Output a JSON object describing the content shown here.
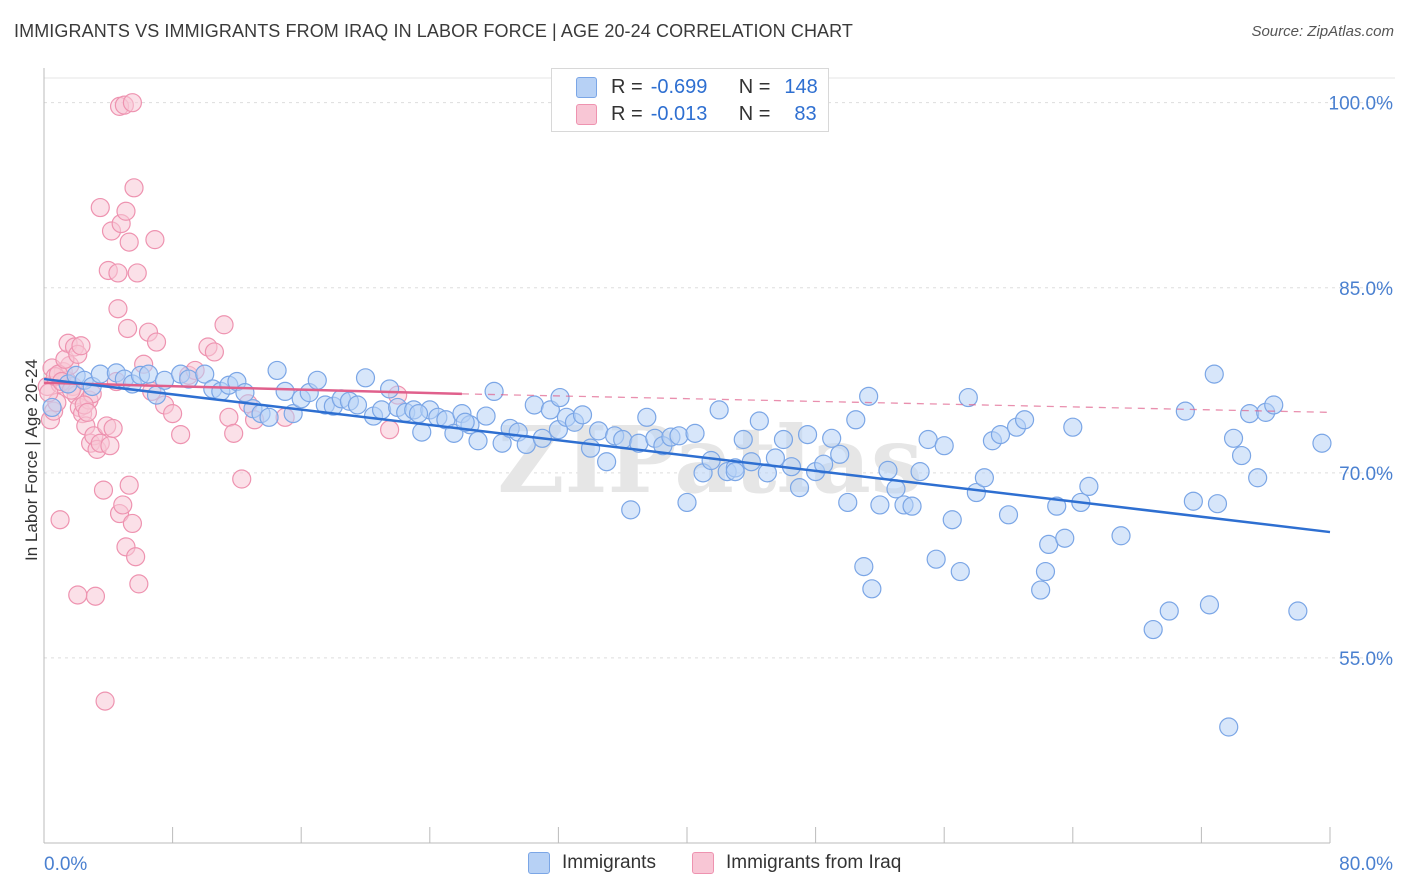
{
  "title": "IMMIGRANTS VS IMMIGRANTS FROM IRAQ IN LABOR FORCE | AGE 20-24 CORRELATION CHART",
  "source": "Source: ZipAtlas.com",
  "watermark": "ZIPatlas",
  "legend": {
    "r_label": "R =",
    "n_label": "N =",
    "series": [
      {
        "r": "-0.699",
        "n": "148"
      },
      {
        "r": "-0.013",
        "n": "83"
      }
    ]
  },
  "bottom_legend": [
    "Immigrants",
    "Immigrants from Iraq"
  ],
  "colors": {
    "blue_fill": "#b7d1f5",
    "blue_stroke": "#7ba6e6",
    "blue_line": "#2e6fd1",
    "pink_fill": "#f8c6d5",
    "pink_stroke": "#ee93b0",
    "pink_line": "#e0608c",
    "grid": "#dddddd",
    "axis_text": "#4a80d0"
  },
  "chart_data": {
    "type": "scatter",
    "title": "IMMIGRANTS VS IMMIGRANTS FROM IRAQ IN LABOR FORCE | AGE 20-24 CORRELATION CHART",
    "xlabel": "",
    "ylabel": "In Labor Force | Age 20-24",
    "xlim": [
      0,
      80
    ],
    "ylim": [
      40,
      102
    ],
    "x_tick_labels": [
      "0.0%",
      "80.0%"
    ],
    "y_tick_labels": [
      "100.0%",
      "85.0%",
      "70.0%",
      "55.0%"
    ],
    "y_ticks": [
      100,
      85,
      70,
      55
    ],
    "grid": true,
    "series": [
      {
        "name": "Immigrants",
        "r": -0.699,
        "n": 148,
        "trend": {
          "x": [
            0,
            80
          ],
          "y": [
            77.6,
            65.2
          ]
        },
        "points": [
          [
            0.5,
            75.3
          ],
          [
            1.5,
            77.2
          ],
          [
            2,
            77.9
          ],
          [
            2.5,
            77.5
          ],
          [
            3,
            77.0
          ],
          [
            3.5,
            78.0
          ],
          [
            4.5,
            78.1
          ],
          [
            5,
            77.6
          ],
          [
            5.5,
            77.2
          ],
          [
            6,
            77.9
          ],
          [
            6.5,
            78.0
          ],
          [
            7,
            76.3
          ],
          [
            7.5,
            77.5
          ],
          [
            8.5,
            78.0
          ],
          [
            9,
            77.6
          ],
          [
            10,
            78.0
          ],
          [
            10.5,
            76.8
          ],
          [
            11,
            76.6
          ],
          [
            11.5,
            77.1
          ],
          [
            12,
            77.4
          ],
          [
            12.5,
            76.5
          ],
          [
            13,
            75.2
          ],
          [
            13.5,
            74.8
          ],
          [
            14,
            74.5
          ],
          [
            14.5,
            78.3
          ],
          [
            15,
            76.6
          ],
          [
            15.5,
            74.8
          ],
          [
            16,
            76.0
          ],
          [
            16.5,
            76.5
          ],
          [
            17,
            77.5
          ],
          [
            17.5,
            75.5
          ],
          [
            18,
            75.4
          ],
          [
            18.5,
            76.0
          ],
          [
            19,
            75.8
          ],
          [
            19.5,
            75.5
          ],
          [
            20,
            77.7
          ],
          [
            20.5,
            74.6
          ],
          [
            21,
            75.1
          ],
          [
            21.5,
            76.8
          ],
          [
            22,
            75.3
          ],
          [
            22.5,
            74.9
          ],
          [
            23,
            75.1
          ],
          [
            23.5,
            73.3
          ],
          [
            24,
            75.1
          ],
          [
            24.5,
            74.5
          ],
          [
            25,
            74.3
          ],
          [
            25.5,
            73.2
          ],
          [
            26,
            74.8
          ],
          [
            26.5,
            73.9
          ],
          [
            27,
            72.6
          ],
          [
            27.5,
            74.6
          ],
          [
            28,
            76.6
          ],
          [
            28.5,
            72.4
          ],
          [
            29,
            73.6
          ],
          [
            29.5,
            73.3
          ],
          [
            30,
            72.3
          ],
          [
            30.5,
            75.5
          ],
          [
            31,
            72.8
          ],
          [
            31.5,
            75.1
          ],
          [
            32,
            73.5
          ],
          [
            32.5,
            74.5
          ],
          [
            33,
            74.1
          ],
          [
            33.5,
            74.7
          ],
          [
            34,
            72.0
          ],
          [
            34.5,
            73.4
          ],
          [
            35,
            70.9
          ],
          [
            35.5,
            73.0
          ],
          [
            36,
            72.7
          ],
          [
            36.5,
            67.0
          ],
          [
            37,
            72.4
          ],
          [
            37.5,
            74.5
          ],
          [
            38,
            72.8
          ],
          [
            38.5,
            72.2
          ],
          [
            39,
            72.9
          ],
          [
            39.5,
            73.0
          ],
          [
            40,
            67.6
          ],
          [
            40.5,
            73.2
          ],
          [
            41,
            70.0
          ],
          [
            41.5,
            71.0
          ],
          [
            42,
            75.1
          ],
          [
            42.5,
            70.1
          ],
          [
            43,
            70.4
          ],
          [
            43.5,
            72.7
          ],
          [
            44,
            70.9
          ],
          [
            44.5,
            74.2
          ],
          [
            45,
            70.0
          ],
          [
            45.5,
            71.2
          ],
          [
            46,
            72.7
          ],
          [
            46.5,
            70.5
          ],
          [
            47,
            68.8
          ],
          [
            47.5,
            73.1
          ],
          [
            48,
            70.1
          ],
          [
            48.5,
            70.7
          ],
          [
            49,
            72.8
          ],
          [
            49.5,
            71.5
          ],
          [
            50,
            67.6
          ],
          [
            50.5,
            74.3
          ],
          [
            51,
            62.4
          ],
          [
            51.5,
            60.6
          ],
          [
            52,
            67.4
          ],
          [
            52.5,
            70.2
          ],
          [
            53,
            68.7
          ],
          [
            53.5,
            67.4
          ],
          [
            54,
            67.3
          ],
          [
            54.5,
            70.1
          ],
          [
            55,
            72.7
          ],
          [
            55.5,
            63.0
          ],
          [
            56,
            72.2
          ],
          [
            56.5,
            66.2
          ],
          [
            57,
            62.0
          ],
          [
            57.5,
            76.1
          ],
          [
            58,
            68.4
          ],
          [
            58.5,
            69.6
          ],
          [
            59,
            72.6
          ],
          [
            59.5,
            73.1
          ],
          [
            60,
            66.6
          ],
          [
            60.5,
            73.7
          ],
          [
            61,
            74.3
          ],
          [
            62,
            60.5
          ],
          [
            62.3,
            62.0
          ],
          [
            62.5,
            64.2
          ],
          [
            63,
            67.3
          ],
          [
            63.5,
            64.7
          ],
          [
            64,
            73.7
          ],
          [
            64.5,
            67.6
          ],
          [
            65,
            68.9
          ],
          [
            67,
            64.9
          ],
          [
            69,
            57.3
          ],
          [
            70,
            58.8
          ],
          [
            71,
            75.0
          ],
          [
            71.5,
            67.7
          ],
          [
            72.5,
            59.3
          ],
          [
            72.8,
            78.0
          ],
          [
            73,
            67.5
          ],
          [
            74,
            72.8
          ],
          [
            74.5,
            71.4
          ],
          [
            75,
            74.8
          ],
          [
            75.5,
            69.6
          ],
          [
            76,
            74.9
          ],
          [
            76.5,
            75.5
          ],
          [
            78,
            58.8
          ],
          [
            79.5,
            72.4
          ],
          [
            73.7,
            49.4
          ],
          [
            23.3,
            74.8
          ],
          [
            26.2,
            74.1
          ],
          [
            32.1,
            76.1
          ],
          [
            43,
            70.1
          ],
          [
            51.3,
            76.2
          ]
        ]
      },
      {
        "name": "Immigrants from Iraq",
        "r": -0.013,
        "n": 83,
        "trend": {
          "x": [
            0,
            26
          ],
          "y": [
            77.3,
            76.4
          ]
        },
        "trend_dashed": {
          "x": [
            26,
            80
          ],
          "y": [
            76.4,
            74.9
          ]
        },
        "points": [
          [
            0.2,
            77.0
          ],
          [
            0.4,
            74.3
          ],
          [
            0.6,
            75.0
          ],
          [
            0.8,
            75.7
          ],
          [
            1.0,
            77.2
          ],
          [
            1.2,
            78.2
          ],
          [
            1.4,
            77.5
          ],
          [
            1.6,
            78.7
          ],
          [
            1.8,
            77.0
          ],
          [
            2.0,
            76.3
          ],
          [
            2.2,
            75.3
          ],
          [
            2.4,
            74.8
          ],
          [
            2.6,
            73.8
          ],
          [
            2.8,
            75.9
          ],
          [
            3.0,
            76.4
          ],
          [
            0.3,
            76.5
          ],
          [
            0.5,
            78.5
          ],
          [
            0.7,
            77.8
          ],
          [
            0.9,
            78.0
          ],
          [
            1.1,
            77.4
          ],
          [
            1.3,
            79.2
          ],
          [
            1.5,
            80.5
          ],
          [
            1.7,
            76.7
          ],
          [
            1.9,
            80.2
          ],
          [
            2.1,
            79.6
          ],
          [
            2.3,
            80.3
          ],
          [
            2.5,
            75.5
          ],
          [
            2.7,
            74.9
          ],
          [
            2.9,
            72.4
          ],
          [
            3.1,
            73.0
          ],
          [
            3.3,
            71.9
          ],
          [
            3.5,
            72.4
          ],
          [
            3.7,
            68.6
          ],
          [
            3.9,
            73.8
          ],
          [
            4.1,
            72.2
          ],
          [
            4.3,
            73.6
          ],
          [
            4.5,
            77.4
          ],
          [
            4.7,
            66.7
          ],
          [
            4.9,
            67.4
          ],
          [
            5.1,
            64.0
          ],
          [
            5.3,
            69.0
          ],
          [
            5.5,
            65.9
          ],
          [
            5.7,
            63.2
          ],
          [
            5.9,
            61.0
          ],
          [
            3.5,
            91.5
          ],
          [
            4.2,
            89.6
          ],
          [
            4.8,
            90.2
          ],
          [
            5.1,
            91.2
          ],
          [
            5.6,
            93.1
          ],
          [
            6.9,
            88.9
          ],
          [
            4.0,
            86.4
          ],
          [
            4.6,
            86.2
          ],
          [
            5.3,
            88.7
          ],
          [
            5.8,
            86.2
          ],
          [
            4.7,
            99.7
          ],
          [
            5.0,
            99.8
          ],
          [
            5.5,
            100.0
          ],
          [
            4.6,
            83.3
          ],
          [
            5.2,
            81.7
          ],
          [
            6.5,
            81.4
          ],
          [
            7.0,
            80.6
          ],
          [
            6.7,
            76.6
          ],
          [
            6.2,
            78.8
          ],
          [
            7.5,
            75.5
          ],
          [
            8.0,
            74.8
          ],
          [
            3.2,
            60.0
          ],
          [
            3.8,
            51.5
          ],
          [
            10.2,
            80.2
          ],
          [
            10.6,
            79.8
          ],
          [
            11.2,
            82.0
          ],
          [
            11.5,
            74.5
          ],
          [
            11.8,
            73.2
          ],
          [
            12.3,
            69.5
          ],
          [
            12.7,
            75.6
          ],
          [
            13.1,
            74.3
          ],
          [
            15.0,
            74.5
          ],
          [
            21.5,
            73.5
          ],
          [
            22.0,
            76.3
          ],
          [
            8.5,
            73.1
          ],
          [
            9.0,
            77.9
          ],
          [
            9.4,
            78.3
          ],
          [
            1.0,
            66.2
          ],
          [
            2.1,
            60.1
          ]
        ]
      }
    ]
  }
}
